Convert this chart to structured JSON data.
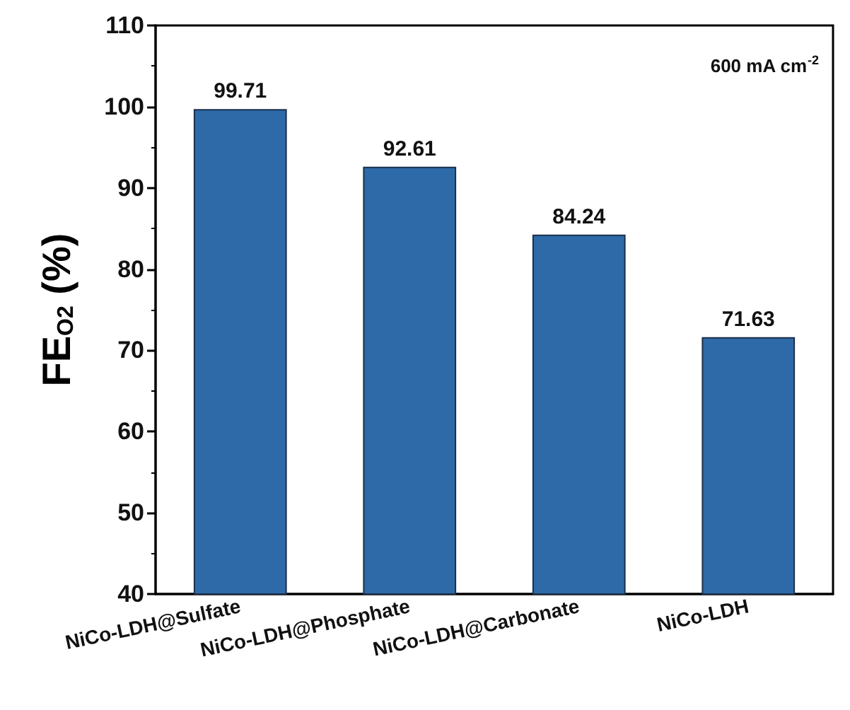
{
  "chart_data": {
    "type": "bar",
    "ylabel": "FE$_{O2}$ (%)",
    "categories": [
      "NiCo-LDH@Sulfate",
      "NiCo-LDH@Phosphate",
      "NiCo-LDH@Carbonate",
      "NiCo-LDH"
    ],
    "values": [
      99.71,
      92.61,
      84.24,
      71.63
    ],
    "color": "#2e6aa8",
    "ylim": [
      40,
      110
    ],
    "yticks": [
      40,
      50,
      60,
      70,
      80,
      90,
      100,
      110
    ],
    "grid": false,
    "data_labels": true,
    "annotations": [
      "600 mA cm$^{-2}$"
    ]
  }
}
